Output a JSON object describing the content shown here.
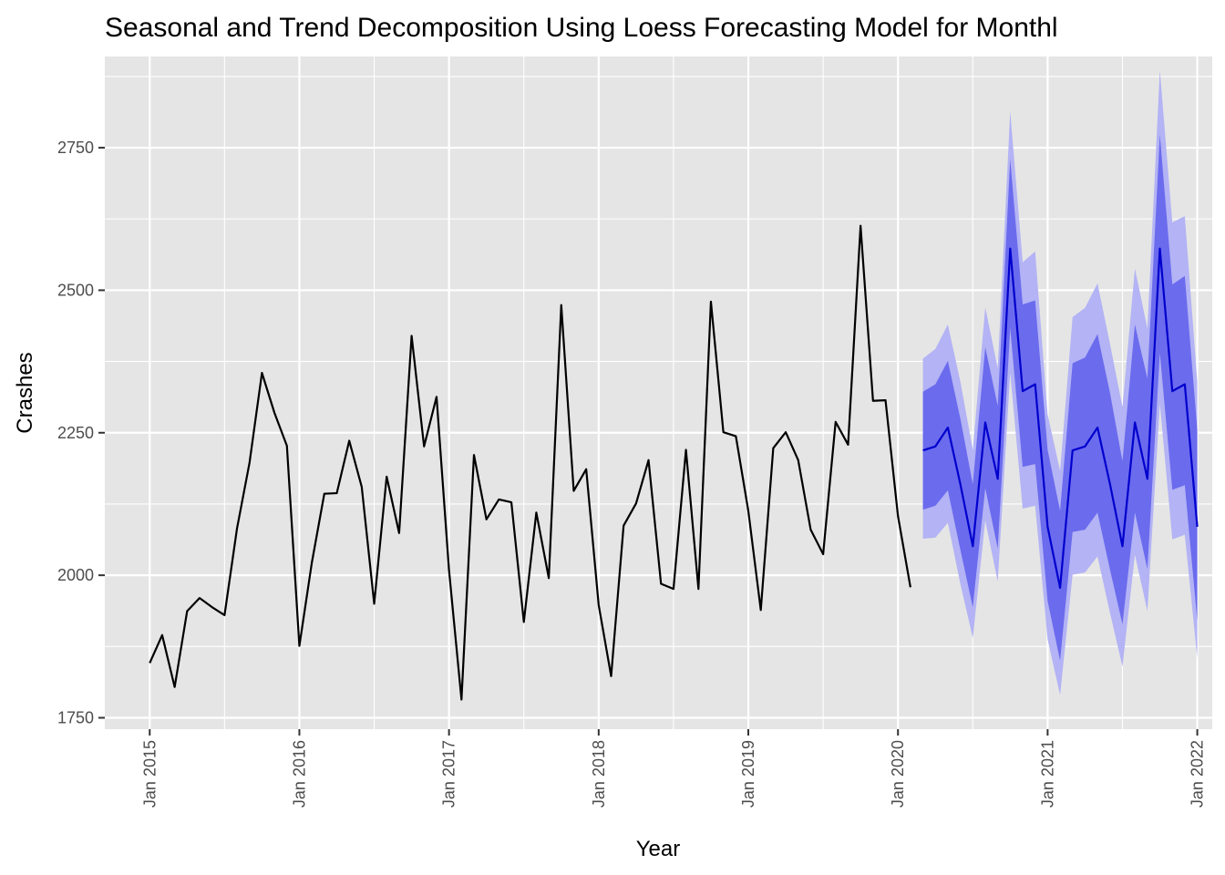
{
  "chart_data": {
    "type": "line",
    "title": "Seasonal and Trend Decomposition Using Loess Forecasting Model for Monthl",
    "xlabel": "Year",
    "ylabel": "Crashes",
    "xlim": [
      2014.7,
      2022.1
    ],
    "ylim": [
      1730,
      2910
    ],
    "y_ticks": [
      1750,
      2000,
      2250,
      2500,
      2750
    ],
    "x_ticks": [
      {
        "value": 2015,
        "label": "Jan 2015"
      },
      {
        "value": 2016,
        "label": "Jan 2016"
      },
      {
        "value": 2017,
        "label": "Jan 2017"
      },
      {
        "value": 2018,
        "label": "Jan 2018"
      },
      {
        "value": 2019,
        "label": "Jan 2019"
      },
      {
        "value": 2020,
        "label": "Jan 2020"
      },
      {
        "value": 2021,
        "label": "Jan 2021"
      },
      {
        "value": 2022,
        "label": "Jan 2022"
      }
    ],
    "grid": true,
    "colors": {
      "panel": "#e5e5e5",
      "grid": "#ffffff",
      "observed": "#000000",
      "forecast": "#0000cd",
      "band95": "#b3b3f5",
      "band80": "#6b6bee"
    },
    "observed": {
      "x": [
        2015.0,
        2015.0833,
        2015.1667,
        2015.25,
        2015.3333,
        2015.4167,
        2015.5,
        2015.5833,
        2015.6667,
        2015.75,
        2015.8333,
        2015.9167,
        2016.0,
        2016.0833,
        2016.1667,
        2016.25,
        2016.3333,
        2016.4167,
        2016.5,
        2016.5833,
        2016.6667,
        2016.75,
        2016.8333,
        2016.9167,
        2017.0,
        2017.0833,
        2017.1667,
        2017.25,
        2017.3333,
        2017.4167,
        2017.5,
        2017.5833,
        2017.6667,
        2017.75,
        2017.8333,
        2017.9167,
        2018.0,
        2018.0833,
        2018.1667,
        2018.25,
        2018.3333,
        2018.4167,
        2018.5,
        2018.5833,
        2018.6667,
        2018.75,
        2018.8333,
        2018.9167,
        2019.0,
        2019.0833,
        2019.1667,
        2019.25,
        2019.3333,
        2019.4167,
        2019.5,
        2019.5833,
        2019.6667,
        2019.75,
        2019.8333,
        2019.9167,
        2020.0,
        2020.0833
      ],
      "y": [
        1846,
        1895,
        1804,
        1937,
        1960,
        1944,
        1930,
        2082,
        2197,
        2355,
        2285,
        2227,
        1876,
        2022,
        2143,
        2144,
        2236,
        2155,
        1950,
        2173,
        2074,
        2420,
        2226,
        2313,
        2009,
        1782,
        2211,
        2098,
        2133,
        2128,
        1918,
        2110,
        1995,
        2474,
        2148,
        2186,
        1948,
        1823,
        2087,
        2126,
        2202,
        1985,
        1976,
        2220,
        1976,
        2480,
        2251,
        2244,
        2113,
        1939,
        2223,
        2251,
        2202,
        2080,
        2037,
        2269,
        2229,
        2613,
        2306,
        2307,
        2104,
        1979
      ]
    },
    "forecast": {
      "x": [
        2020.1667,
        2020.25,
        2020.3333,
        2020.4167,
        2020.5,
        2020.5833,
        2020.6667,
        2020.75,
        2020.8333,
        2020.9167,
        2021.0,
        2021.0833,
        2021.1667,
        2021.25,
        2021.3333,
        2021.4167,
        2021.5,
        2021.5833,
        2021.6667,
        2021.75,
        2021.8333,
        2021.9167,
        2022.0
      ],
      "y": [
        2219,
        2226,
        2259,
        2160,
        2051,
        2268,
        2169,
        2573,
        2323,
        2335,
        2085,
        1978,
        2219,
        2226,
        2259,
        2160,
        2051,
        2268,
        2169,
        2573,
        2323,
        2335,
        2085
      ],
      "lo80": [
        2115,
        2122,
        2149,
        2045,
        1944,
        2153,
        2047,
        2434,
        2190,
        2195,
        1955,
        1850,
        2076,
        2080,
        2110,
        2010,
        1914,
        2110,
        2011,
        2390,
        2150,
        2158,
        1920
      ],
      "hi80": [
        2322,
        2335,
        2376,
        2275,
        2160,
        2400,
        2297,
        2730,
        2475,
        2482,
        2220,
        2113,
        2372,
        2382,
        2423,
        2320,
        2200,
        2440,
        2345,
        2773,
        2510,
        2525,
        2255
      ],
      "lo95": [
        2064,
        2066,
        2092,
        1985,
        1890,
        2096,
        1989,
        2355,
        2117,
        2122,
        1887,
        1790,
        2001,
        2005,
        2033,
        1934,
        1840,
        2036,
        1937,
        2301,
        2063,
        2071,
        1855
      ],
      "hi95": [
        2380,
        2397,
        2440,
        2340,
        2220,
        2470,
        2363,
        2814,
        2549,
        2568,
        2282,
        2183,
        2453,
        2469,
        2512,
        2406,
        2295,
        2538,
        2433,
        2886,
        2619,
        2630,
        2340
      ]
    }
  }
}
